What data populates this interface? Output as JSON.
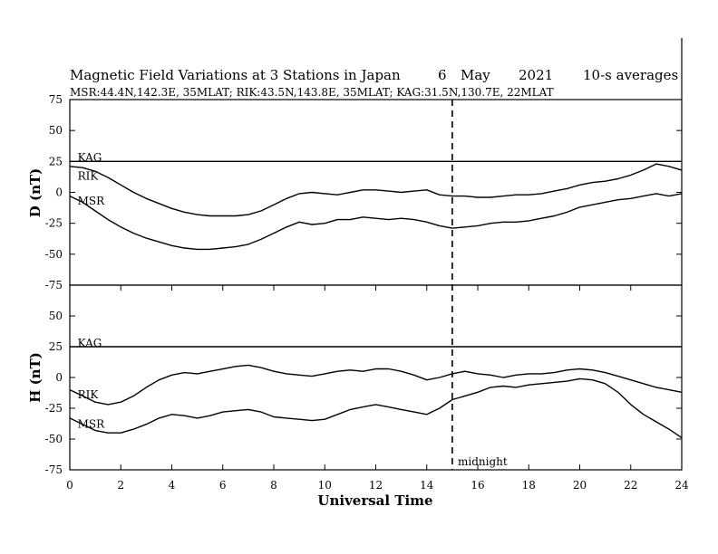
{
  "chart_data": {
    "type": "line",
    "title": "Magnetic Field Variations at 3 Stations in Japan",
    "date_day": "6",
    "date_month": "May",
    "date_year": "2021",
    "averaging": "10-s averages",
    "subtitle": "MSR:44.4N,142.3E, 35MLAT;  RIK:43.5N,143.8E, 35MLAT;  KAG:31.5N,130.7E, 22MLAT",
    "xlabel": "Universal Time",
    "xlim": [
      0,
      24
    ],
    "xticks": [
      "0",
      "2",
      "4",
      "6",
      "8",
      "10",
      "12",
      "14",
      "16",
      "18",
      "20",
      "22",
      "24"
    ],
    "midnight_marker": {
      "x": 15,
      "label": "midnight"
    },
    "panels": [
      {
        "ylabel": "D (nT)",
        "ylim": [
          -75,
          75
        ],
        "yticks": [
          "75",
          "50",
          "25",
          "0",
          "-25",
          "-50",
          "-75"
        ],
        "series": [
          {
            "name": "KAG",
            "label_at": [
              0.2,
              28
            ],
            "x": [
              0,
              24
            ],
            "y": [
              25,
              25
            ]
          },
          {
            "name": "RIK",
            "label_at": [
              0.2,
              13
            ],
            "x": [
              0,
              0.5,
              1,
              1.5,
              2,
              2.5,
              3,
              3.5,
              4,
              4.5,
              5,
              5.5,
              6,
              6.5,
              7,
              7.5,
              8,
              8.5,
              9,
              9.5,
              10,
              10.5,
              11,
              11.5,
              12,
              12.5,
              13,
              13.5,
              14,
              14.5,
              15,
              15.5,
              16,
              16.5,
              17,
              17.5,
              18,
              18.5,
              19,
              19.5,
              20,
              20.5,
              21,
              21.5,
              22,
              22.5,
              23,
              23.5,
              24
            ],
            "y": [
              21,
              20,
              17,
              12,
              6,
              0,
              -5,
              -9,
              -13,
              -16,
              -18,
              -19,
              -19,
              -19,
              -18,
              -15,
              -10,
              -5,
              -1,
              0,
              -1,
              -2,
              0,
              2,
              2,
              1,
              0,
              1,
              2,
              -2,
              -3,
              -3,
              -4,
              -4,
              -3,
              -2,
              -2,
              -1,
              1,
              3,
              6,
              8,
              9,
              11,
              14,
              18,
              23,
              21,
              18
            ]
          },
          {
            "name": "MSR",
            "label_at": [
              0.2,
              -7
            ],
            "x": [
              0,
              0.5,
              1,
              1.5,
              2,
              2.5,
              3,
              3.5,
              4,
              4.5,
              5,
              5.5,
              6,
              6.5,
              7,
              7.5,
              8,
              8.5,
              9,
              9.5,
              10,
              10.5,
              11,
              11.5,
              12,
              12.5,
              13,
              13.5,
              14,
              14.5,
              15,
              15.5,
              16,
              16.5,
              17,
              17.5,
              18,
              18.5,
              19,
              19.5,
              20,
              20.5,
              21,
              21.5,
              22,
              22.5,
              23,
              23.5,
              24
            ],
            "y": [
              -3,
              -8,
              -15,
              -22,
              -28,
              -33,
              -37,
              -40,
              -43,
              -45,
              -46,
              -46,
              -45,
              -44,
              -42,
              -38,
              -33,
              -28,
              -24,
              -26,
              -25,
              -22,
              -22,
              -20,
              -21,
              -22,
              -21,
              -22,
              -24,
              -27,
              -29,
              -28,
              -27,
              -25,
              -24,
              -24,
              -23,
              -21,
              -19,
              -16,
              -12,
              -10,
              -8,
              -6,
              -5,
              -3,
              -1,
              -3,
              -1
            ]
          }
        ]
      },
      {
        "ylabel": "H (nT)",
        "ylim": [
          -75,
          75
        ],
        "yticks": [
          "75",
          "50",
          "25",
          "0",
          "-25",
          "-50",
          "-75"
        ],
        "series": [
          {
            "name": "KAG",
            "label_at": [
              0.2,
              28
            ],
            "x": [
              0,
              24
            ],
            "y": [
              25,
              25
            ]
          },
          {
            "name": "RIK",
            "label_at": [
              0.2,
              -14
            ],
            "x": [
              0,
              0.5,
              1,
              1.5,
              2,
              2.5,
              3,
              3.5,
              4,
              4.5,
              5,
              5.5,
              6,
              6.5,
              7,
              7.5,
              8,
              8.5,
              9,
              9.5,
              10,
              10.5,
              11,
              11.5,
              12,
              12.5,
              13,
              13.5,
              14,
              14.5,
              15,
              15.5,
              16,
              16.5,
              17,
              17.5,
              18,
              18.5,
              19,
              19.5,
              20,
              20.5,
              21,
              21.5,
              22,
              22.5,
              23,
              23.5,
              24
            ],
            "y": [
              -10,
              -15,
              -20,
              -22,
              -20,
              -15,
              -8,
              -2,
              2,
              4,
              3,
              5,
              7,
              9,
              10,
              8,
              5,
              3,
              2,
              1,
              3,
              5,
              6,
              5,
              7,
              7,
              5,
              2,
              -2,
              0,
              3,
              5,
              3,
              2,
              0,
              2,
              3,
              3,
              4,
              6,
              7,
              6,
              4,
              1,
              -2,
              -5,
              -8,
              -10,
              -12
            ]
          },
          {
            "name": "MSR",
            "label_at": [
              0.2,
              -38
            ],
            "x": [
              0,
              0.5,
              1,
              1.5,
              2,
              2.5,
              3,
              3.5,
              4,
              4.5,
              5,
              5.5,
              6,
              6.5,
              7,
              7.5,
              8,
              8.5,
              9,
              9.5,
              10,
              10.5,
              11,
              11.5,
              12,
              12.5,
              13,
              13.5,
              14,
              14.5,
              15,
              15.5,
              16,
              16.5,
              17,
              17.5,
              18,
              18.5,
              19,
              19.5,
              20,
              20.5,
              21,
              21.5,
              22,
              22.5,
              23,
              23.5,
              24
            ],
            "y": [
              -33,
              -38,
              -43,
              -45,
              -45,
              -42,
              -38,
              -33,
              -30,
              -31,
              -33,
              -31,
              -28,
              -27,
              -26,
              -28,
              -32,
              -33,
              -34,
              -35,
              -34,
              -30,
              -26,
              -24,
              -22,
              -24,
              -26,
              -28,
              -30,
              -25,
              -18,
              -15,
              -12,
              -8,
              -7,
              -8,
              -6,
              -5,
              -4,
              -3,
              -1,
              -2,
              -5,
              -12,
              -22,
              -30,
              -36,
              -42,
              -49
            ]
          }
        ]
      }
    ]
  }
}
